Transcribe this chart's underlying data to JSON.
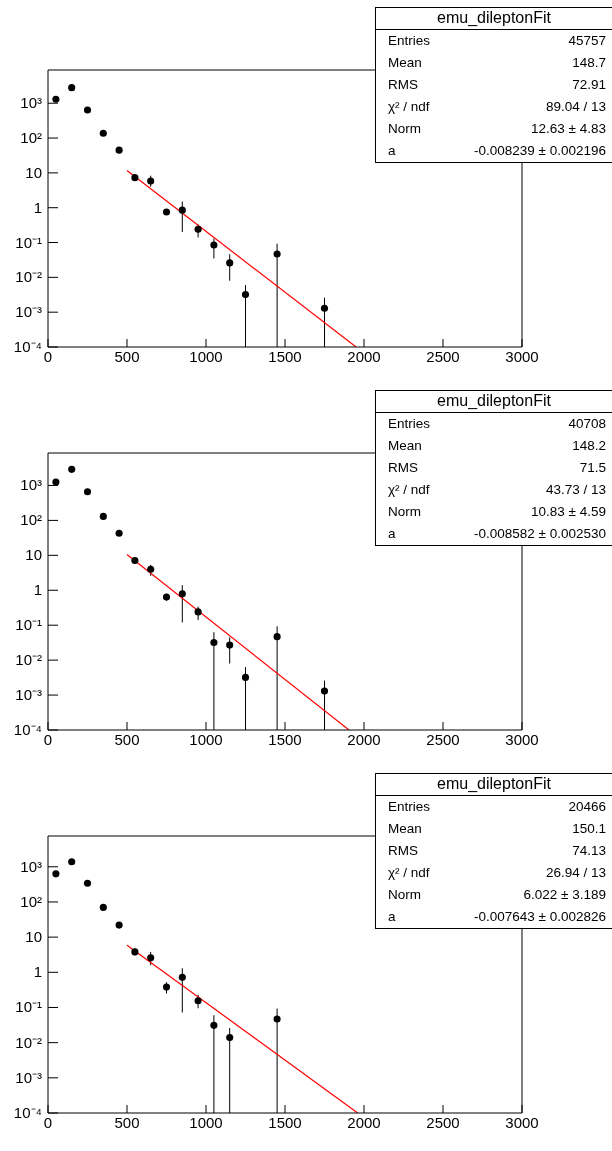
{
  "chart_data": [
    {
      "type": "scatter",
      "xlim": [
        0,
        3000
      ],
      "xticks": [
        0,
        500,
        1000,
        1500,
        2000,
        2500,
        3000
      ],
      "ylim": [
        0.0001,
        9000
      ],
      "log": true,
      "yticks": [
        {
          "value": 0.0001,
          "label": "10⁻⁴"
        },
        {
          "value": 0.001,
          "label": "10⁻³"
        },
        {
          "value": 0.01,
          "label": "10⁻²"
        },
        {
          "value": 0.1,
          "label": "10⁻¹"
        },
        {
          "value": 1,
          "label": "1"
        },
        {
          "value": 10,
          "label": "10"
        },
        {
          "value": 100,
          "label": "10²"
        },
        {
          "value": 1000,
          "label": "10³"
        }
      ],
      "series": [
        {
          "type": "scatter",
          "marker": "circle",
          "color": "#000000",
          "x": [
            50,
            150,
            250,
            350,
            450,
            550,
            650,
            750,
            850,
            950,
            1050,
            1150,
            1250,
            1450,
            1750
          ],
          "values": [
            1300,
            2800,
            640,
            137,
            45,
            7.3,
            5.8,
            0.75,
            0.85,
            0.24,
            0.085,
            0.026,
            0.0032,
            0.047,
            0.0013
          ],
          "errors": [
            null,
            null,
            null,
            null,
            null,
            null,
            [
              4.0,
              8.3
            ],
            [
              0.65,
              0.88
            ],
            [
              0.2,
              1.5
            ],
            [
              0.14,
              0.33
            ],
            [
              0.035,
              0.13
            ],
            [
              0.008,
              0.046
            ],
            [
              0.0001,
              0.006
            ],
            [
              0.0001,
              0.093
            ],
            [
              0.0001,
              0.0026
            ]
          ]
        },
        {
          "type": "line",
          "marker": "none",
          "color": "#ff0000",
          "x": [
            500,
            1950
          ],
          "values": [
            11.7,
            0.0001
          ]
        }
      ],
      "annotations": [
        "emu_dileptonFit",
        "Entries",
        "45757",
        "Mean",
        "148.7",
        "RMS",
        "72.91",
        "χ² / ndf",
        "89.04 / 13",
        "Norm",
        "12.63 ± 4.83",
        "a",
        "-0.008239 ± 0.002196"
      ]
    },
    {
      "type": "scatter",
      "xlim": [
        0,
        3000
      ],
      "xticks": [
        0,
        500,
        1000,
        1500,
        2000,
        2500,
        3000
      ],
      "ylim": [
        0.0001,
        8500
      ],
      "log": true,
      "yticks": [
        {
          "value": 0.0001,
          "label": "10⁻⁴"
        },
        {
          "value": 0.001,
          "label": "10⁻³"
        },
        {
          "value": 0.01,
          "label": "10⁻²"
        },
        {
          "value": 0.1,
          "label": "10⁻¹"
        },
        {
          "value": 1,
          "label": "1"
        },
        {
          "value": 10,
          "label": "10"
        },
        {
          "value": 100,
          "label": "10²"
        },
        {
          "value": 1000,
          "label": "10³"
        }
      ],
      "series": [
        {
          "type": "scatter",
          "marker": "circle",
          "color": "#000000",
          "x": [
            50,
            150,
            250,
            350,
            450,
            550,
            650,
            750,
            850,
            950,
            1050,
            1150,
            1250,
            1450,
            1750
          ],
          "values": [
            1260,
            2900,
            660,
            130,
            43,
            7.1,
            4.0,
            0.64,
            0.79,
            0.24,
            0.032,
            0.027,
            0.0032,
            0.047,
            0.0013
          ],
          "errors": [
            null,
            null,
            null,
            null,
            null,
            null,
            [
              2.6,
              5.3
            ],
            [
              0.5,
              0.8
            ],
            [
              0.12,
              1.4
            ],
            [
              0.14,
              0.34
            ],
            [
              0.0001,
              0.063
            ],
            [
              0.008,
              0.045
            ],
            [
              0.0001,
              0.0063
            ],
            [
              0.0001,
              0.093
            ],
            [
              0.0001,
              0.0026
            ]
          ]
        },
        {
          "type": "line",
          "marker": "none",
          "color": "#ff0000",
          "x": [
            500,
            1905
          ],
          "values": [
            10.5,
            0.0001
          ]
        }
      ],
      "annotations": [
        "emu_dileptonFit",
        "Entries",
        "40708",
        "Mean",
        "148.2",
        "RMS",
        "71.5",
        "χ² / ndf",
        "43.73 / 13",
        "Norm",
        "10.83 ± 4.59",
        "a",
        "-0.008582 ± 0.002530"
      ]
    },
    {
      "type": "scatter",
      "xlim": [
        0,
        3000
      ],
      "xticks": [
        0,
        500,
        1000,
        1500,
        2000,
        2500,
        3000
      ],
      "ylim": [
        0.0001,
        7500
      ],
      "log": true,
      "yticks": [
        {
          "value": 0.0001,
          "label": "10⁻⁴"
        },
        {
          "value": 0.001,
          "label": "10⁻³"
        },
        {
          "value": 0.01,
          "label": "10⁻²"
        },
        {
          "value": 0.1,
          "label": "10⁻¹"
        },
        {
          "value": 1,
          "label": "1"
        },
        {
          "value": 10,
          "label": "10"
        },
        {
          "value": 100,
          "label": "10²"
        },
        {
          "value": 1000,
          "label": "10³"
        }
      ],
      "series": [
        {
          "type": "scatter",
          "marker": "circle",
          "color": "#000000",
          "x": [
            50,
            150,
            250,
            350,
            450,
            550,
            650,
            750,
            850,
            950,
            1050,
            1150,
            1450
          ],
          "values": [
            630,
            1390,
            340,
            70,
            22,
            3.8,
            2.6,
            0.38,
            0.72,
            0.155,
            0.031,
            0.014,
            0.047
          ],
          "errors": [
            null,
            null,
            null,
            null,
            [
              19,
              25
            ],
            [
              3.0,
              4.8
            ],
            [
              1.6,
              3.8
            ],
            [
              0.25,
              0.52
            ],
            [
              0.072,
              1.3
            ],
            [
              0.095,
              0.23
            ],
            [
              0.0001,
              0.06
            ],
            [
              0.0001,
              0.026
            ],
            [
              0.0001,
              0.093
            ]
          ]
        },
        {
          "type": "line",
          "marker": "none",
          "color": "#ff0000",
          "x": [
            500,
            1960
          ],
          "values": [
            5.9,
            0.0001
          ]
        }
      ],
      "annotations": [
        "emu_dileptonFit",
        "Entries",
        "20466",
        "Mean",
        "150.1",
        "RMS",
        "74.13",
        "χ² / ndf",
        "26.94 / 13",
        "Norm",
        "6.022 ± 3.189",
        "a",
        "-0.007643 ± 0.002826"
      ]
    }
  ]
}
